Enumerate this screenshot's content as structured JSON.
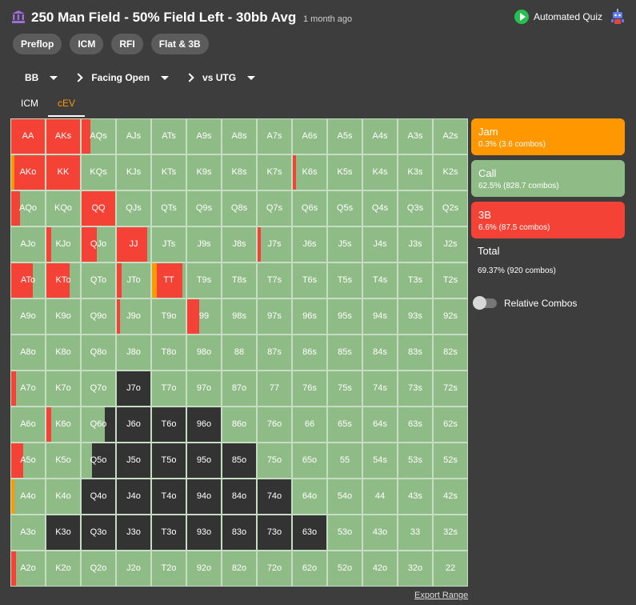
{
  "header": {
    "title": "250 Man Field - 50% Field Left - 30bb Avg",
    "time_ago": "1 month ago",
    "quiz_label": "Automated Quiz"
  },
  "chips": [
    "Preflop",
    "ICM",
    "RFI",
    "Flat & 3B"
  ],
  "breadcrumb": [
    "BB",
    "Facing Open",
    "vs UTG"
  ],
  "tabs": [
    {
      "label": "ICM",
      "active": false
    },
    {
      "label": "cEV",
      "active": true
    }
  ],
  "colors": {
    "jam": "#ff9800",
    "call": "#8fbc86",
    "threebet": "#f44336",
    "fold": "#333333"
  },
  "legend": [
    {
      "key": "jam",
      "name": "Jam",
      "sub": "0.3% (3.6 combos)"
    },
    {
      "key": "call",
      "name": "Call",
      "sub": "62.5% (828.7 combos)"
    },
    {
      "key": "threebet",
      "name": "3B",
      "sub": "6.6% (87.5 combos)"
    }
  ],
  "total": {
    "label": "Total",
    "value": "69.37% (920 combos)"
  },
  "toggle_label": "Relative Combos",
  "export_label": "Export Range",
  "hands": [
    [
      "AA",
      "AKs",
      "AQs",
      "AJs",
      "ATs",
      "A9s",
      "A8s",
      "A7s",
      "A6s",
      "A5s",
      "A4s",
      "A3s",
      "A2s"
    ],
    [
      "AKo",
      "KK",
      "KQs",
      "KJs",
      "KTs",
      "K9s",
      "K8s",
      "K7s",
      "K6s",
      "K5s",
      "K4s",
      "K3s",
      "K2s"
    ],
    [
      "AQo",
      "KQo",
      "QQ",
      "QJs",
      "QTs",
      "Q9s",
      "Q8s",
      "Q7s",
      "Q6s",
      "Q5s",
      "Q4s",
      "Q3s",
      "Q2s"
    ],
    [
      "AJo",
      "KJo",
      "QJo",
      "JJ",
      "JTs",
      "J9s",
      "J8s",
      "J7s",
      "J6s",
      "J5s",
      "J4s",
      "J3s",
      "J2s"
    ],
    [
      "ATo",
      "KTo",
      "QTo",
      "JTo",
      "TT",
      "T9s",
      "T8s",
      "T7s",
      "T6s",
      "T5s",
      "T4s",
      "T3s",
      "T2s"
    ],
    [
      "A9o",
      "K9o",
      "Q9o",
      "J9o",
      "T9o",
      "99",
      "98s",
      "97s",
      "96s",
      "95s",
      "94s",
      "93s",
      "92s"
    ],
    [
      "A8o",
      "K8o",
      "Q8o",
      "J8o",
      "T8o",
      "98o",
      "88",
      "87s",
      "86s",
      "85s",
      "84s",
      "83s",
      "82s"
    ],
    [
      "A7o",
      "K7o",
      "Q7o",
      "J7o",
      "T7o",
      "97o",
      "87o",
      "77",
      "76s",
      "75s",
      "74s",
      "73s",
      "72s"
    ],
    [
      "A6o",
      "K6o",
      "Q6o",
      "J6o",
      "T6o",
      "96o",
      "86o",
      "76o",
      "66",
      "65s",
      "64s",
      "63s",
      "62s"
    ],
    [
      "A5o",
      "K5o",
      "Q5o",
      "J5o",
      "T5o",
      "95o",
      "85o",
      "75o",
      "65o",
      "55",
      "54s",
      "53s",
      "52s"
    ],
    [
      "A4o",
      "K4o",
      "Q4o",
      "J4o",
      "T4o",
      "94o",
      "84o",
      "74o",
      "64o",
      "54o",
      "44",
      "43s",
      "42s"
    ],
    [
      "A3o",
      "K3o",
      "Q3o",
      "J3o",
      "T3o",
      "93o",
      "83o",
      "73o",
      "63o",
      "53o",
      "43o",
      "33",
      "32s"
    ],
    [
      "A2o",
      "K2o",
      "Q2o",
      "J2o",
      "T2o",
      "92o",
      "82o",
      "72o",
      "62o",
      "52o",
      "42o",
      "32o",
      "22"
    ]
  ],
  "mix": {
    "AA": {
      "t": 1
    },
    "AKs": {
      "t": 1
    },
    "AQs": {
      "c": 0.73,
      "t": 0.27
    },
    "AKo": {
      "j": 0.1,
      "t": 0.9
    },
    "KK": {
      "t": 1
    },
    "K6s": {
      "c": 0.9,
      "t": 0.1
    },
    "AQo": {
      "c": 0.75,
      "t": 0.25
    },
    "QQ": {
      "t": 1
    },
    "KJo": {
      "c": 0.85,
      "t": 0.15
    },
    "QJo": {
      "c": 0.55,
      "t": 0.45
    },
    "JJ": {
      "c": 0.1,
      "t": 0.9
    },
    "J7s": {
      "c": 0.9,
      "t": 0.1
    },
    "ATo": {
      "c": 0.35,
      "t": 0.65
    },
    "KTo": {
      "c": 0.3,
      "t": 0.7
    },
    "JTo": {
      "c": 0.85,
      "t": 0.15
    },
    "TT": {
      "c": 0.1,
      "j": 0.15,
      "t": 0.75
    },
    "J9o": {
      "c": 0.9,
      "t": 0.1
    },
    "99": {
      "c": 0.65,
      "t": 0.35
    },
    "A7o": {
      "c": 0.85,
      "t": 0.15
    },
    "K6o": {
      "c": 0.85,
      "t": 0.15
    },
    "Q6o": {
      "c": 0.7,
      "f": 0.3
    },
    "A5o": {
      "c": 0.65,
      "t": 0.35
    },
    "Q5o": {
      "c": 0.3,
      "f": 0.7
    },
    "A4o": {
      "j": 0.1,
      "c": 0.9
    },
    "A2o": {
      "c": 0.85,
      "t": 0.15
    },
    "J7o": {
      "f": 1
    },
    "J6o": {
      "f": 1
    },
    "T6o": {
      "f": 1
    },
    "96o": {
      "f": 1
    },
    "J5o": {
      "f": 1
    },
    "T5o": {
      "f": 1
    },
    "95o": {
      "f": 1
    },
    "85o": {
      "f": 1
    },
    "Q4o": {
      "f": 1
    },
    "J4o": {
      "f": 1
    },
    "T4o": {
      "f": 1
    },
    "94o": {
      "f": 1
    },
    "84o": {
      "f": 1
    },
    "74o": {
      "f": 1
    },
    "K3o": {
      "f": 1
    },
    "Q3o": {
      "f": 1
    },
    "J3o": {
      "f": 1
    },
    "T3o": {
      "f": 1
    },
    "93o": {
      "f": 1
    },
    "83o": {
      "f": 1
    },
    "73o": {
      "f": 1
    },
    "63o": {
      "f": 1
    }
  }
}
